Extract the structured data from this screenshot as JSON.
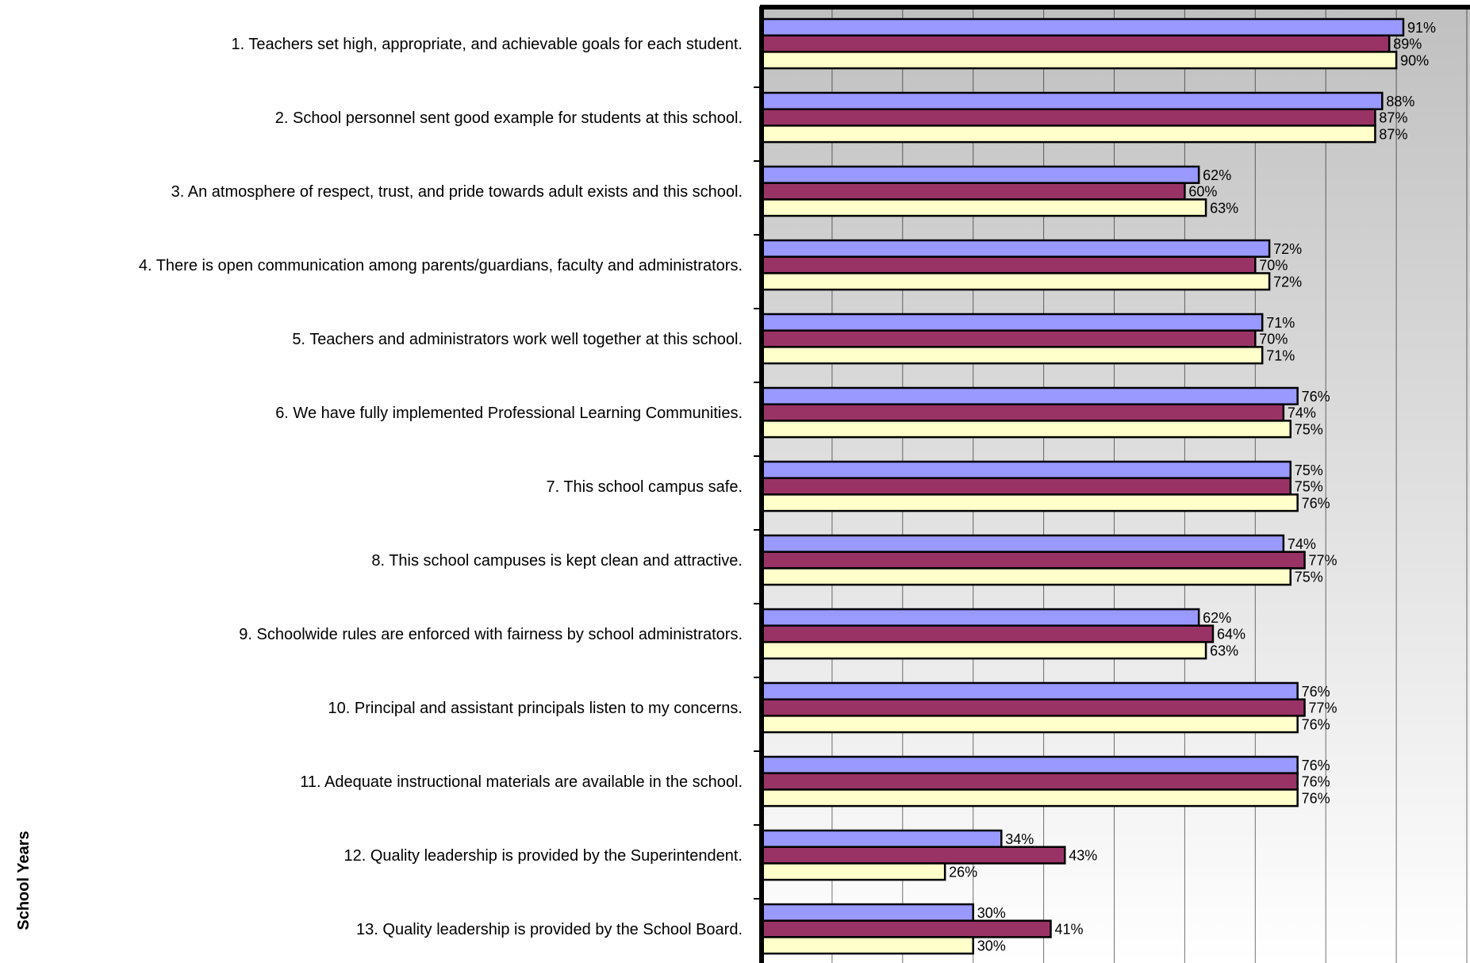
{
  "chart_data": {
    "type": "bar",
    "orientation": "horizontal",
    "ylabel": "School Years",
    "xlim": [
      0,
      100
    ],
    "grid": true,
    "legend": "none",
    "categories": [
      "1.  Teachers set high, appropriate, and achievable goals for each student.",
      "2.  School personnel sent good example for students at this school.",
      "3.  An atmosphere of respect, trust, and pride towards adult exists and this school.",
      "4.  There is open communication among parents/guardians, faculty and administrators.",
      "5.  Teachers and administrators work well together at this school.",
      "6.  We have fully implemented Professional Learning Communities.",
      "7.  This school campus safe.",
      "8.  This school campuses is kept clean and attractive.",
      "9.  Schoolwide rules are enforced with fairness by school administrators.",
      "10.  Principal and assistant principals listen to my concerns.",
      "11.  Adequate instructional materials are available in the school.",
      "12.  Quality leadership is provided by the Superintendent.",
      "13.  Quality leadership is provided by the School Board."
    ],
    "series": [
      {
        "color": "#9999ff",
        "values": [
          91,
          88,
          62,
          72,
          71,
          76,
          75,
          74,
          62,
          76,
          76,
          34,
          30
        ]
      },
      {
        "color": "#993366",
        "values": [
          89,
          87,
          60,
          70,
          70,
          74,
          75,
          77,
          64,
          77,
          76,
          43,
          41
        ]
      },
      {
        "color": "#ffffcc",
        "values": [
          90,
          87,
          63,
          72,
          71,
          75,
          76,
          75,
          63,
          76,
          76,
          26,
          30
        ]
      }
    ],
    "value_suffix": "%",
    "plot_background": [
      "#c0c0c0",
      "#ffffff"
    ]
  }
}
